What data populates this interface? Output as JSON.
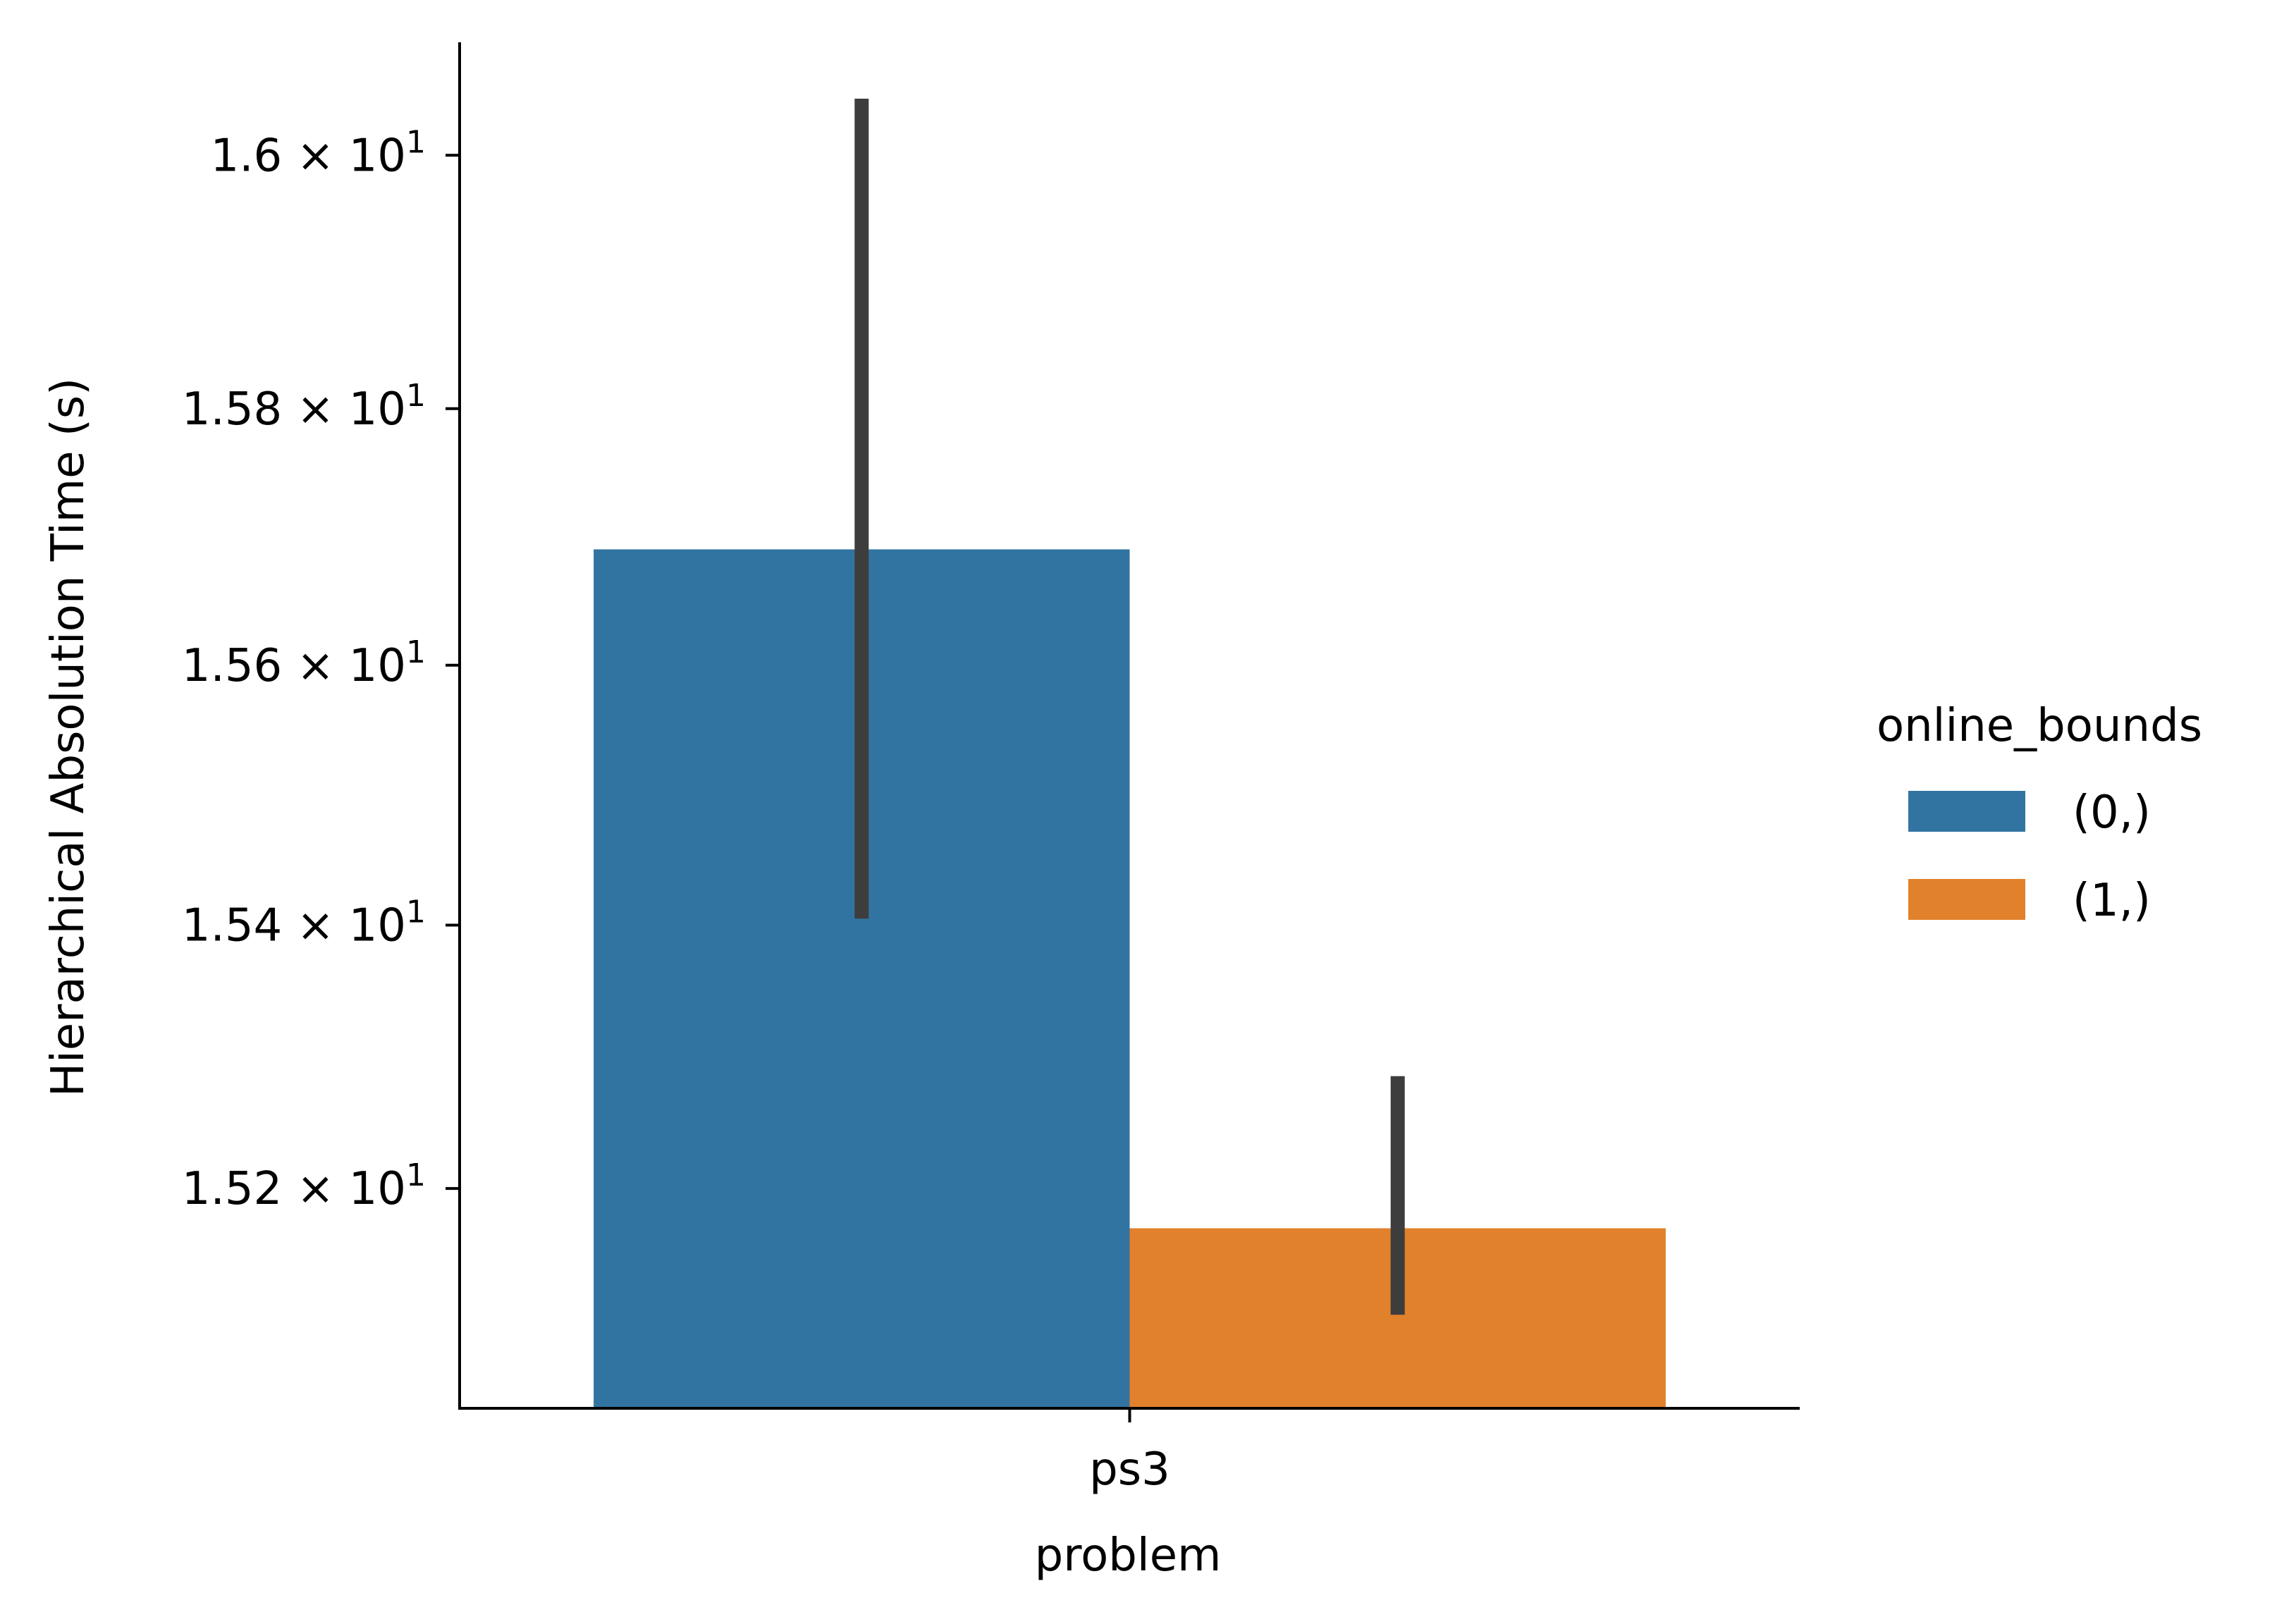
{
  "chart_data": {
    "type": "bar",
    "title": "",
    "xlabel": "problem",
    "ylabel": "Hierarchical Absolution Time (s)",
    "yscale": "log",
    "categories": [
      "ps3"
    ],
    "ylim": [
      15.035,
      16.09
    ],
    "yticks": [
      {
        "value": 15.2,
        "label_mantissa": "1.52",
        "label_sep": "×",
        "label_base": "10",
        "label_exp": "1"
      },
      {
        "value": 15.4,
        "label_mantissa": "1.54",
        "label_sep": "×",
        "label_base": "10",
        "label_exp": "1"
      },
      {
        "value": 15.6,
        "label_mantissa": "1.56",
        "label_sep": "×",
        "label_base": "10",
        "label_exp": "1"
      },
      {
        "value": 15.8,
        "label_mantissa": "1.58",
        "label_sep": "×",
        "label_base": "10",
        "label_exp": "1"
      },
      {
        "value": 16.0,
        "label_mantissa": "1.6",
        "label_sep": "×",
        "label_base": "10",
        "label_exp": "1"
      }
    ],
    "series": [
      {
        "name": "(0,)",
        "color": "#3274a1",
        "values": [
          15.69
        ],
        "err_low": [
          15.405
        ],
        "err_high": [
          16.045
        ]
      },
      {
        "name": "(1,)",
        "color": "#e1812c",
        "values": [
          15.17
        ],
        "err_low": [
          15.105
        ],
        "err_high": [
          15.285
        ]
      }
    ],
    "legend": {
      "title": "online_bounds",
      "placement": "right"
    },
    "grid": false,
    "error_bar_color": "#3d3d3d"
  }
}
